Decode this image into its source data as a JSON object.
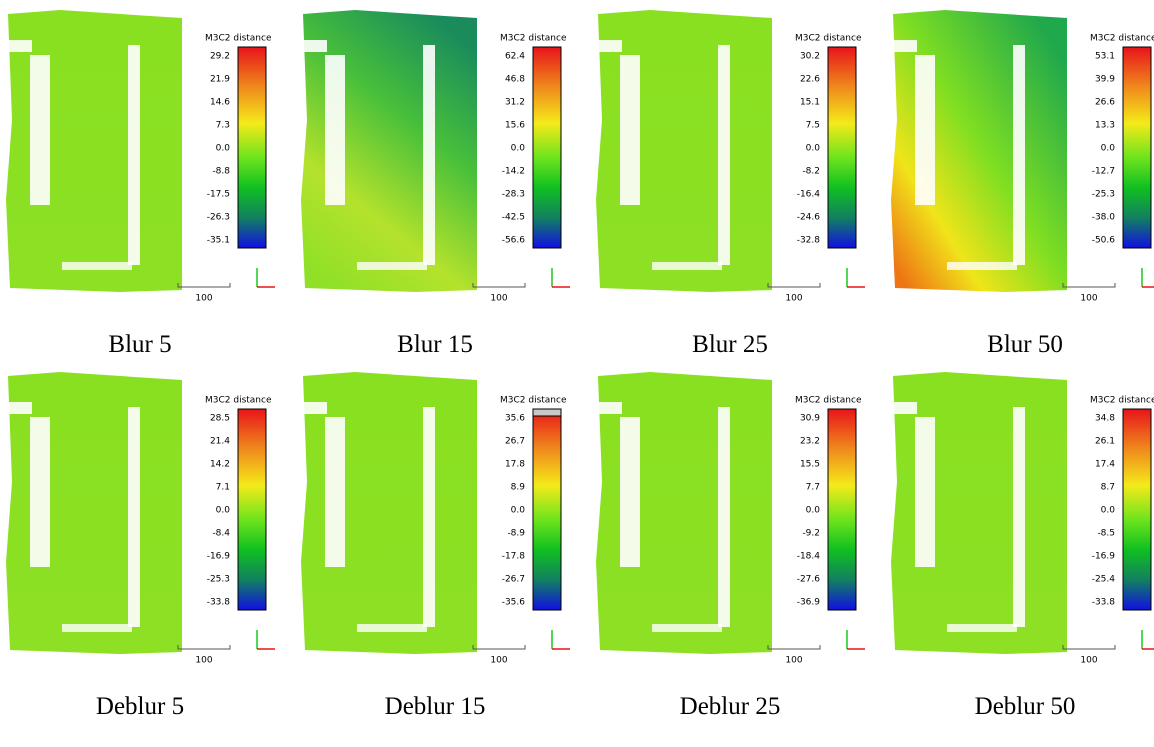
{
  "panels": [
    {
      "caption": "Blur 5",
      "scale_title": "M3C2 distance",
      "ticks": [
        "29.2",
        "21.9",
        "14.6",
        "7.3",
        "0.0",
        "-8.8",
        "-17.5",
        "-26.3",
        "-35.1"
      ],
      "scale_bar": "100"
    },
    {
      "caption": "Blur 15",
      "scale_title": "M3C2 distance",
      "ticks": [
        "62.4",
        "46.8",
        "31.2",
        "15.6",
        "0.0",
        "-14.2",
        "-28.3",
        "-42.5",
        "-56.6"
      ],
      "scale_bar": "100"
    },
    {
      "caption": "Blur 25",
      "scale_title": "M3C2 distance",
      "ticks": [
        "30.2",
        "22.6",
        "15.1",
        "7.5",
        "0.0",
        "-8.2",
        "-16.4",
        "-24.6",
        "-32.8"
      ],
      "scale_bar": "100"
    },
    {
      "caption": "Blur 50",
      "scale_title": "M3C2 distance",
      "ticks": [
        "53.1",
        "39.9",
        "26.6",
        "13.3",
        "0.0",
        "-12.7",
        "-25.3",
        "-38.0",
        "-50.6"
      ],
      "scale_bar": "100"
    },
    {
      "caption": "Deblur 5",
      "scale_title": "M3C2 distance",
      "ticks": [
        "28.5",
        "21.4",
        "14.2",
        "7.1",
        "0.0",
        "-8.4",
        "-16.9",
        "-25.3",
        "-33.8"
      ],
      "scale_bar": "100"
    },
    {
      "caption": "Deblur 15",
      "scale_title": "M3C2 distance",
      "ticks": [
        "35.6",
        "26.7",
        "17.8",
        "8.9",
        "0.0",
        "-8.9",
        "-17.8",
        "-26.7",
        "-35.6"
      ],
      "scale_bar": "100"
    },
    {
      "caption": "Deblur 25",
      "scale_title": "M3C2 distance",
      "ticks": [
        "30.9",
        "23.2",
        "15.5",
        "7.7",
        "0.0",
        "-9.2",
        "-18.4",
        "-27.6",
        "-36.9"
      ],
      "scale_bar": "100"
    },
    {
      "caption": "Deblur 50",
      "scale_title": "M3C2 distance",
      "ticks": [
        "34.8",
        "26.1",
        "17.4",
        "8.7",
        "0.0",
        "-8.5",
        "-16.9",
        "-25.4",
        "-33.8"
      ],
      "scale_bar": "100"
    }
  ]
}
